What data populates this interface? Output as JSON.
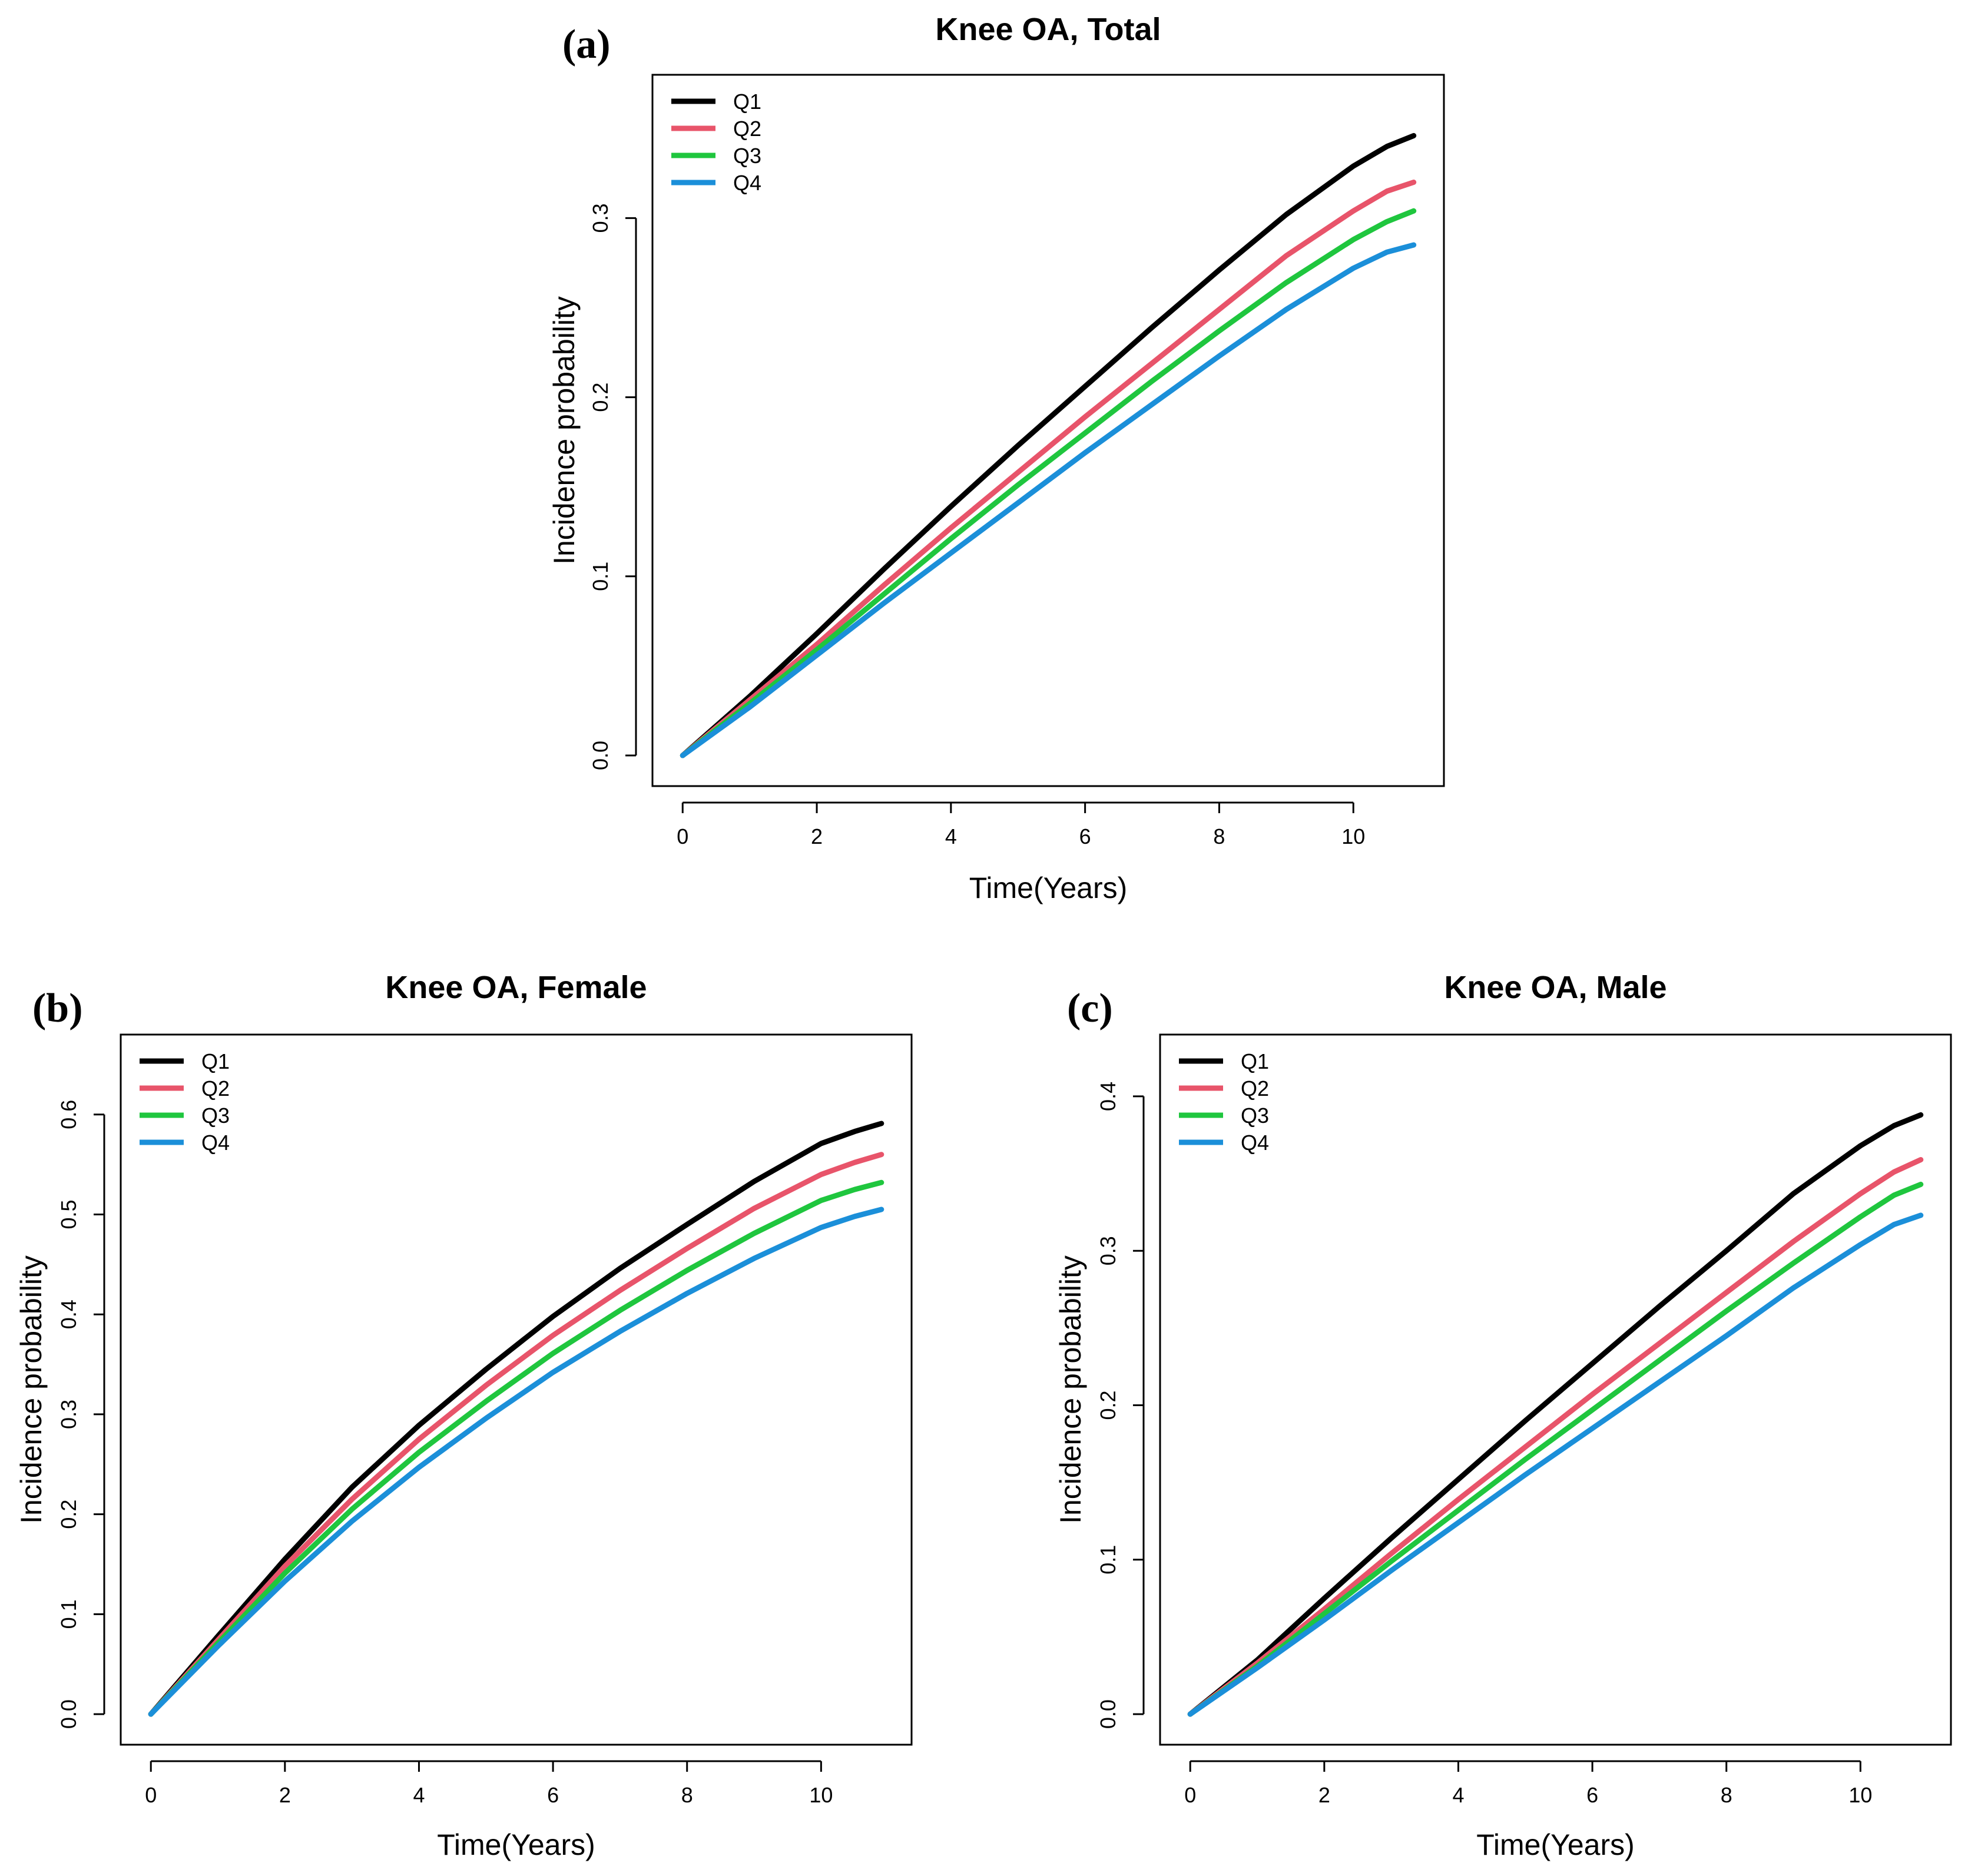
{
  "chart_data": [
    {
      "type": "line",
      "panel_label": "(a)",
      "title": "Knee OA, Total",
      "xlabel": "Time(Years)",
      "ylabel": "Incidence probability",
      "xlim": [
        0,
        11
      ],
      "ylim": [
        0,
        0.38
      ],
      "xticks": [
        "0",
        "2",
        "4",
        "6",
        "8",
        "10"
      ],
      "yticks": [
        "0.0",
        "0.1",
        "0.2",
        "0.3"
      ],
      "legend_position": "top-left",
      "x": [
        0,
        1,
        2,
        3,
        4,
        5,
        6,
        7,
        8,
        9,
        10,
        10.5,
        10.9
      ],
      "series": [
        {
          "name": "Q1",
          "color": "#000000",
          "values": [
            0,
            0.033,
            0.068,
            0.104,
            0.139,
            0.173,
            0.206,
            0.239,
            0.271,
            0.302,
            0.329,
            0.34,
            0.346
          ]
        },
        {
          "name": "Q2",
          "color": "#E8546A",
          "values": [
            0,
            0.031,
            0.062,
            0.095,
            0.127,
            0.158,
            0.189,
            0.219,
            0.249,
            0.279,
            0.304,
            0.315,
            0.32
          ]
        },
        {
          "name": "Q3",
          "color": "#1FC63E",
          "values": [
            0,
            0.029,
            0.059,
            0.09,
            0.121,
            0.151,
            0.18,
            0.209,
            0.237,
            0.264,
            0.288,
            0.298,
            0.304
          ]
        },
        {
          "name": "Q4",
          "color": "#1B8FD9",
          "values": [
            0,
            0.027,
            0.056,
            0.085,
            0.113,
            0.141,
            0.169,
            0.196,
            0.223,
            0.249,
            0.272,
            0.281,
            0.285
          ]
        }
      ]
    },
    {
      "type": "line",
      "panel_label": "(b)",
      "title": "Knee OA, Female",
      "xlabel": "Time(Years)",
      "ylabel": "Incidence probability",
      "xlim": [
        0,
        11
      ],
      "ylim": [
        0,
        0.68
      ],
      "xticks": [
        "0",
        "2",
        "4",
        "6",
        "8",
        "10"
      ],
      "yticks": [
        "0.0",
        "0.1",
        "0.2",
        "0.3",
        "0.4",
        "0.5",
        "0.6"
      ],
      "legend_position": "top-left",
      "x": [
        0,
        1,
        2,
        3,
        4,
        5,
        6,
        7,
        8,
        9,
        10,
        10.5,
        10.9
      ],
      "series": [
        {
          "name": "Q1",
          "color": "#000000",
          "values": [
            0,
            0.078,
            0.155,
            0.227,
            0.289,
            0.345,
            0.398,
            0.446,
            0.49,
            0.533,
            0.571,
            0.583,
            0.591
          ]
        },
        {
          "name": "Q2",
          "color": "#E8546A",
          "values": [
            0,
            0.074,
            0.148,
            0.215,
            0.275,
            0.329,
            0.379,
            0.424,
            0.466,
            0.506,
            0.54,
            0.552,
            0.56
          ]
        },
        {
          "name": "Q3",
          "color": "#1FC63E",
          "values": [
            0,
            0.071,
            0.141,
            0.205,
            0.262,
            0.313,
            0.361,
            0.404,
            0.444,
            0.481,
            0.514,
            0.525,
            0.532
          ]
        },
        {
          "name": "Q4",
          "color": "#1B8FD9",
          "values": [
            0,
            0.068,
            0.133,
            0.193,
            0.247,
            0.296,
            0.342,
            0.383,
            0.421,
            0.456,
            0.487,
            0.498,
            0.505
          ]
        }
      ]
    },
    {
      "type": "line",
      "panel_label": "(c)",
      "title": "Knee OA, Male",
      "xlabel": "Time(Years)",
      "ylabel": "Incidence probability",
      "xlim": [
        0,
        11
      ],
      "ylim": [
        0,
        0.44
      ],
      "xticks": [
        "0",
        "2",
        "4",
        "6",
        "8",
        "10"
      ],
      "yticks": [
        "0.0",
        "0.1",
        "0.2",
        "0.3",
        "0.4"
      ],
      "legend_position": "top-left",
      "x": [
        0,
        1,
        2,
        3,
        4,
        5,
        6,
        7,
        8,
        9,
        10,
        10.5,
        10.9
      ],
      "series": [
        {
          "name": "Q1",
          "color": "#000000",
          "values": [
            0,
            0.035,
            0.075,
            0.114,
            0.152,
            0.19,
            0.227,
            0.264,
            0.3,
            0.337,
            0.368,
            0.381,
            0.388
          ]
        },
        {
          "name": "Q2",
          "color": "#E8546A",
          "values": [
            0,
            0.033,
            0.068,
            0.104,
            0.139,
            0.173,
            0.207,
            0.24,
            0.273,
            0.306,
            0.337,
            0.351,
            0.359
          ]
        },
        {
          "name": "Q3",
          "color": "#1FC63E",
          "values": [
            0,
            0.031,
            0.065,
            0.099,
            0.132,
            0.165,
            0.197,
            0.229,
            0.261,
            0.292,
            0.322,
            0.336,
            0.343
          ]
        },
        {
          "name": "Q4",
          "color": "#1B8FD9",
          "values": [
            0,
            0.03,
            0.061,
            0.093,
            0.124,
            0.155,
            0.185,
            0.215,
            0.245,
            0.276,
            0.304,
            0.317,
            0.323
          ]
        }
      ]
    }
  ]
}
